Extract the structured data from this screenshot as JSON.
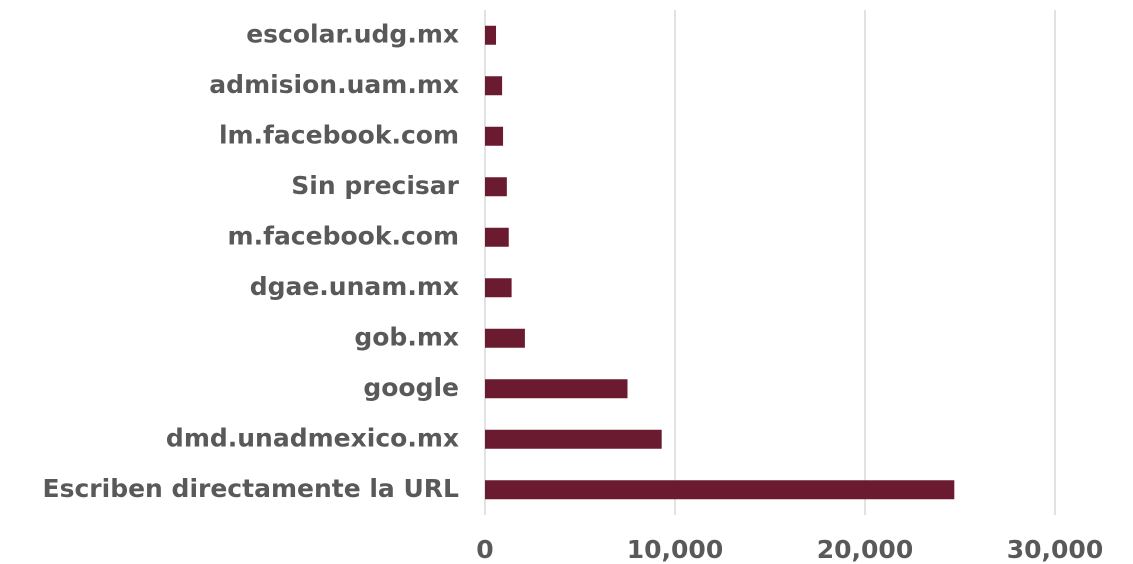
{
  "chart_data": {
    "type": "hbar",
    "categories": [
      "escolar.udg.mx",
      "admision.uam.mx",
      "lm.facebook.com",
      "Sin precisar",
      "m.facebook.com",
      "dgae.unam.mx",
      "gob.mx",
      "google",
      "dmd.unadmexico.mx",
      "Escriben directamente la URL"
    ],
    "values": [
      580,
      900,
      950,
      1150,
      1250,
      1400,
      2100,
      7500,
      9300,
      24700
    ],
    "color": "#6b1b30",
    "xlim": [
      0,
      30000
    ],
    "xticks": [
      0,
      {
        "value": 10000,
        "label": "10,000"
      },
      {
        "value": 20000,
        "label": "20,000"
      },
      {
        "value": 30000,
        "label": "30,000"
      }
    ],
    "grid": true
  }
}
